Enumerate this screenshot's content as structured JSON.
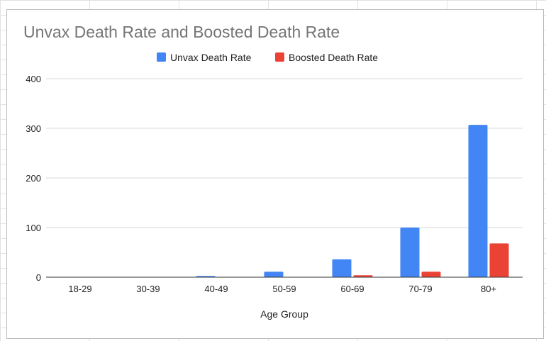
{
  "chart_data": {
    "type": "bar",
    "title": "Unvax Death Rate and Boosted Death Rate",
    "xlabel": "Age Group",
    "ylabel": "",
    "ylim": [
      0,
      400
    ],
    "yticks": [
      0,
      100,
      200,
      300,
      400
    ],
    "grid": true,
    "legend_position": "top",
    "categories": [
      "18-29",
      "30-39",
      "40-49",
      "50-59",
      "60-69",
      "70-79",
      "80+"
    ],
    "series": [
      {
        "name": "Unvax Death Rate",
        "color": "#4285f4",
        "values": [
          0.2,
          0.5,
          2.5,
          11,
          36,
          100,
          307
        ]
      },
      {
        "name": "Boosted Death Rate",
        "color": "#ea4335",
        "values": [
          0,
          0,
          0.2,
          0.6,
          4,
          11,
          68
        ]
      }
    ]
  }
}
